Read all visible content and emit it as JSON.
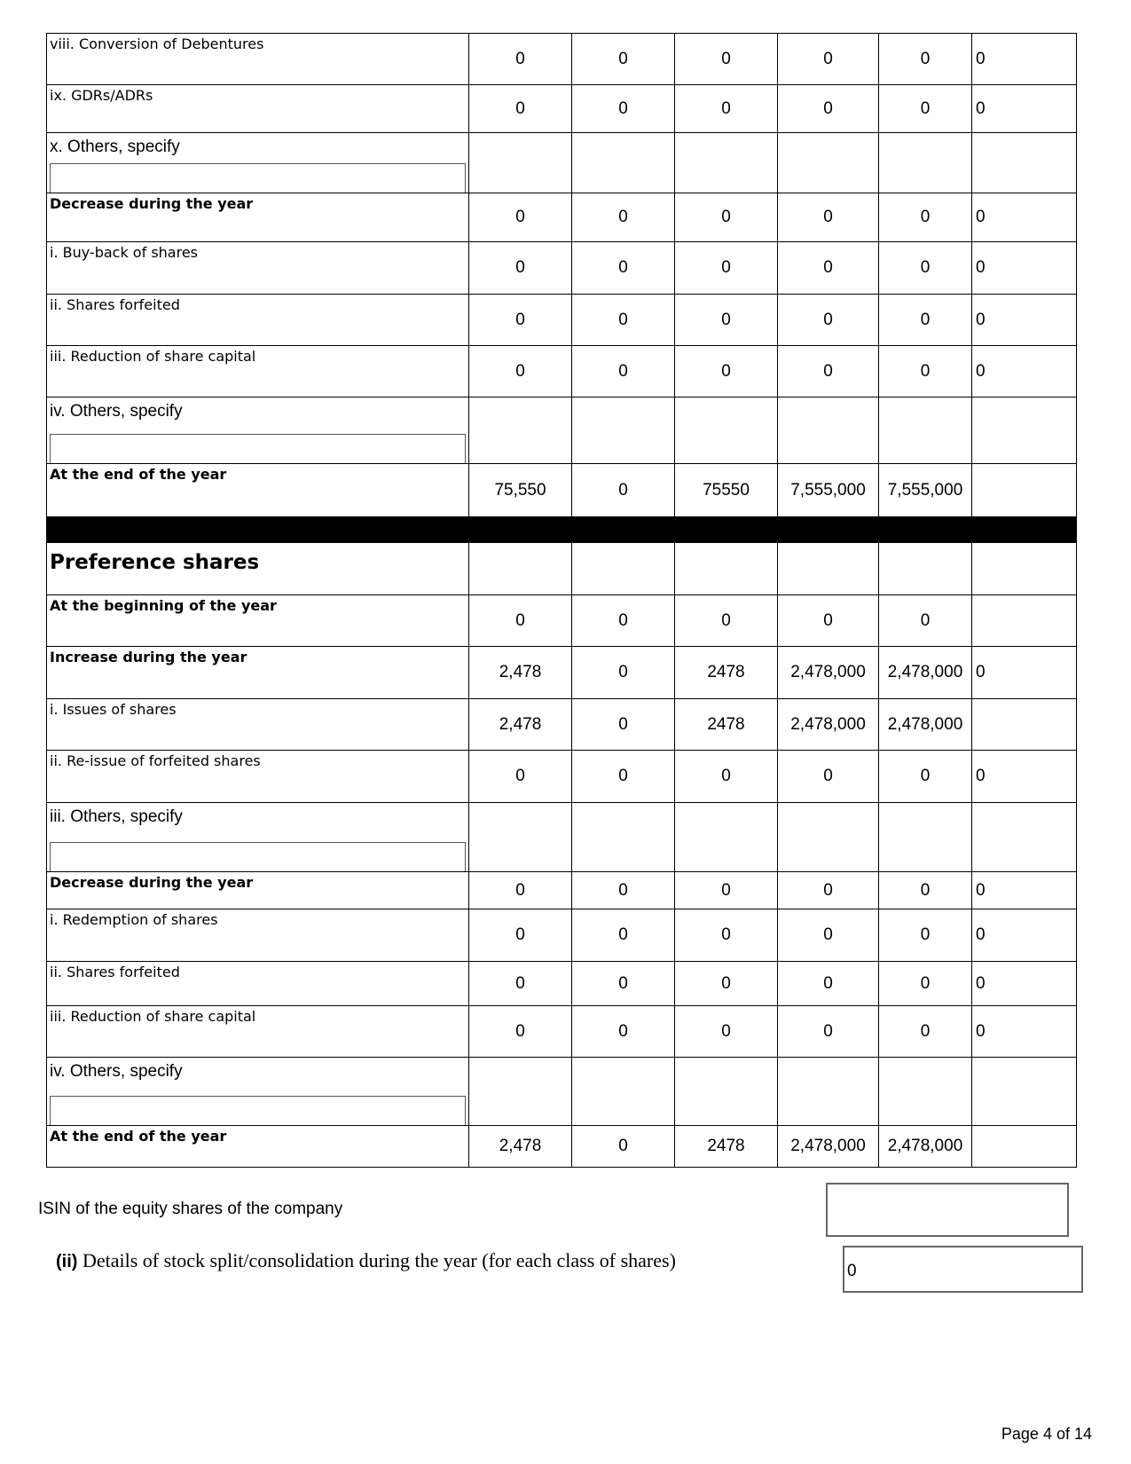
{
  "rows": [
    {
      "label": "viii. Conversion of Debentures",
      "style": "normal",
      "values": [
        "0",
        "0",
        "0",
        "0",
        "0",
        "0"
      ]
    },
    {
      "label": "ix. GDRs/ADRs",
      "style": "normal",
      "values": [
        "0",
        "0",
        "0",
        "0",
        "0",
        "0"
      ]
    },
    {
      "label": "x. Others, specify",
      "style": "specify",
      "input": "",
      "values": [
        "",
        "",
        "",
        "",
        "",
        ""
      ]
    },
    {
      "label": "Decrease during the year",
      "style": "bold",
      "values": [
        "0",
        "0",
        "0",
        "0",
        "0",
        "0"
      ]
    },
    {
      "label": "i. Buy-back of shares",
      "style": "normal",
      "values": [
        "0",
        "0",
        "0",
        "0",
        "0",
        "0"
      ]
    },
    {
      "label": "ii. Shares forfeited",
      "style": "normal",
      "values": [
        "0",
        "0",
        "0",
        "0",
        "0",
        "0"
      ]
    },
    {
      "label": "iii. Reduction of share capital",
      "style": "normal",
      "values": [
        "0",
        "0",
        "0",
        "0",
        "0",
        "0"
      ]
    },
    {
      "label": "iv. Others, specify",
      "style": "specify",
      "input": "",
      "values": [
        "",
        "",
        "",
        "",
        "",
        ""
      ]
    },
    {
      "label": "At the end of the year",
      "style": "bold",
      "values": [
        "75,550",
        "0",
        "75550",
        "7,555,000",
        "7,555,000",
        ""
      ]
    },
    {
      "label": "",
      "style": "black",
      "values": []
    },
    {
      "label": "Preference shares",
      "style": "heading",
      "values": [
        "",
        "",
        "",
        "",
        "",
        ""
      ]
    },
    {
      "label": "At the beginning of the year",
      "style": "bold",
      "values": [
        "0",
        "0",
        "0",
        "0",
        "0",
        ""
      ]
    },
    {
      "label": "Increase during the year",
      "style": "bold",
      "values": [
        "2,478",
        "0",
        "2478",
        "2,478,000",
        "2,478,000",
        "0"
      ]
    },
    {
      "label": "i. Issues of shares",
      "style": "normal",
      "values": [
        "2,478",
        "0",
        "2478",
        "2,478,000",
        "2,478,000",
        ""
      ]
    },
    {
      "label": "ii. Re-issue of forfeited shares",
      "style": "normal",
      "values": [
        "0",
        "0",
        "0",
        "0",
        "0",
        "0"
      ]
    },
    {
      "label": "iii. Others, specify",
      "style": "specify",
      "input": "",
      "values": [
        "",
        "",
        "",
        "",
        "",
        ""
      ]
    },
    {
      "label": "Decrease during the year",
      "style": "bold",
      "values": [
        "0",
        "0",
        "0",
        "0",
        "0",
        "0"
      ]
    },
    {
      "label": "i. Redemption of shares",
      "style": "normal",
      "values": [
        "0",
        "0",
        "0",
        "0",
        "0",
        "0"
      ]
    },
    {
      "label": "ii. Shares forfeited",
      "style": "normal",
      "values": [
        "0",
        "0",
        "0",
        "0",
        "0",
        "0"
      ]
    },
    {
      "label": "iii. Reduction of share capital",
      "style": "normal",
      "values": [
        "0",
        "0",
        "0",
        "0",
        "0",
        "0"
      ]
    },
    {
      "label": "iv. Others, specify",
      "style": "specify",
      "input": "",
      "values": [
        "",
        "",
        "",
        "",
        "",
        ""
      ]
    },
    {
      "label": "At the end of the year",
      "style": "bold",
      "values": [
        "2,478",
        "0",
        "2478",
        "2,478,000",
        "2,478,000",
        ""
      ]
    }
  ],
  "isin": {
    "label": "ISIN of the equity shares of the company",
    "value": ""
  },
  "stock_split": {
    "prefix": "(ii)",
    "label": " Details of stock split/consolidation during the year (for each class of shares)",
    "value": "0"
  },
  "footer": {
    "page": "Page 4 of 14"
  }
}
